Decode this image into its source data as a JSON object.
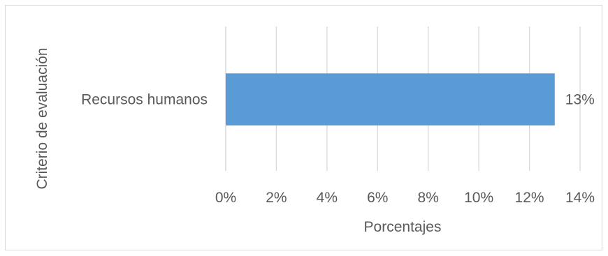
{
  "chart_data": {
    "type": "bar",
    "orientation": "horizontal",
    "categories": [
      "Recursos humanos"
    ],
    "values": [
      13
    ],
    "data_labels": [
      "13%"
    ],
    "xlabel": "Porcentajes",
    "ylabel": "Criterio de evaluación",
    "xlim": [
      0,
      14
    ],
    "x_ticks": [
      "0%",
      "2%",
      "4%",
      "6%",
      "8%",
      "10%",
      "12%",
      "14%"
    ],
    "grid": "vertical",
    "legend": "none",
    "bar_color": "#5b9bd5",
    "grid_color": "#d9d9d9",
    "text_color": "#595959"
  }
}
